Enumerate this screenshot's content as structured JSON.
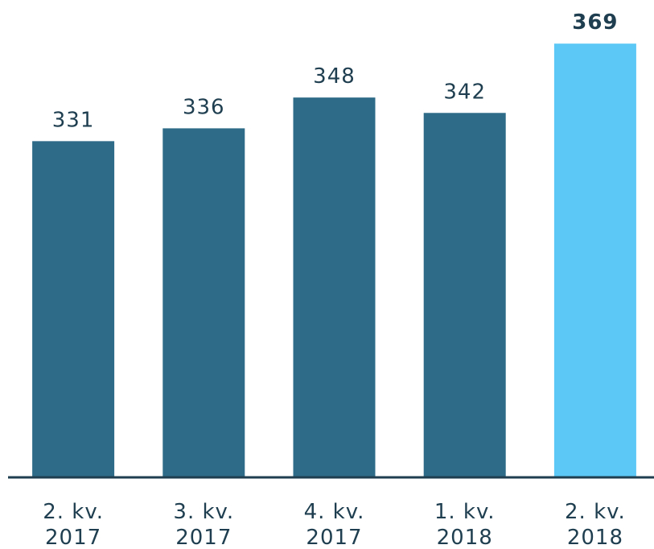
{
  "chart_data": {
    "type": "bar",
    "categories": [
      "2. kv. 2017",
      "3. kv. 2017",
      "4. kv. 2017",
      "1. kv. 2018",
      "2. kv. 2018"
    ],
    "values": [
      331,
      336,
      348,
      342,
      369
    ],
    "colors": [
      "#2e6b88",
      "#2e6b88",
      "#2e6b88",
      "#2e6b88",
      "#5bc8f6"
    ],
    "highlight": 4,
    "ylim": [
      200,
      386
    ]
  }
}
